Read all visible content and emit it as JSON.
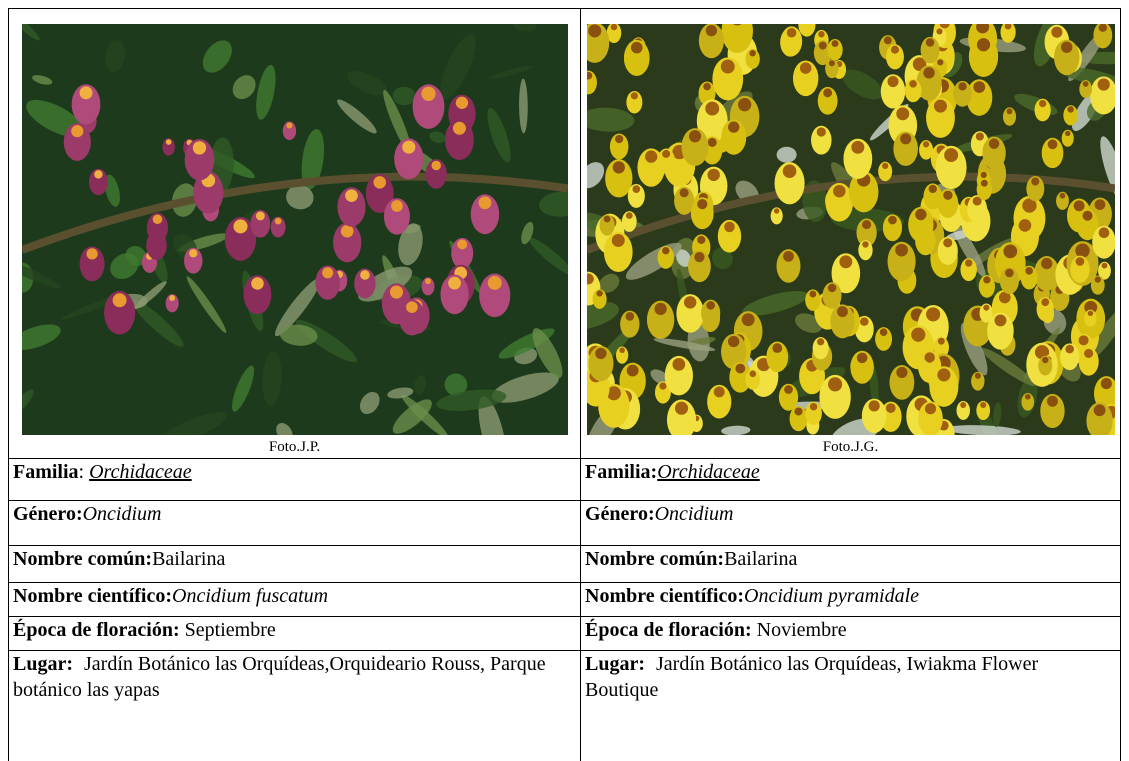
{
  "cards": [
    {
      "photo_credit": "Foto.J.P.",
      "familia": {
        "label": "Familia",
        "sep": ":",
        "value": "Orchidaceae"
      },
      "genero": {
        "label": "Género:",
        "value": "Oncidium"
      },
      "nombre_comun": {
        "label": "Nombre común:",
        "value": "Bailarina"
      },
      "nombre_cientifico": {
        "label": "Nombre científico:",
        "value": "Oncidium fuscatum"
      },
      "epoca": {
        "label": "Época de floración:",
        "value": "Septiembre"
      },
      "lugar": {
        "label": "Lugar:",
        "value": "Jardín Botánico las Orquídeas,Orquideario Rouss, Parque botánico las yapas"
      }
    },
    {
      "photo_credit": "Foto.J.G.",
      "familia": {
        "label": "Familia:",
        "value": "Orchidaceae"
      },
      "genero": {
        "label": "Género:",
        "value": "Oncidium"
      },
      "nombre_comun": {
        "label": "Nombre común:",
        "value": "Bailarina"
      },
      "nombre_cientifico": {
        "label": "Nombre científico:",
        "value": "Oncidium pyramidale"
      },
      "epoca": {
        "label": "Época de floración:",
        "value": "Noviembre"
      },
      "lugar": {
        "label": "Lugar:",
        "value": "Jardín Botánico las Orquídeas, Iwiakma Flower Boutique"
      }
    }
  ]
}
